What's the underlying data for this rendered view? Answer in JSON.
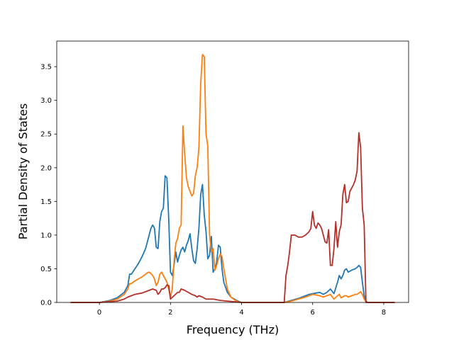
{
  "chart_data": {
    "type": "line",
    "title": "",
    "xlabel": "Frequency (THz)",
    "ylabel": "Partial Density of States",
    "xlim": [
      -1.2,
      8.7
    ],
    "ylim": [
      0,
      3.88
    ],
    "xticks": [
      0,
      2,
      4,
      6,
      8
    ],
    "yticks": [
      0.0,
      0.5,
      1.0,
      1.5,
      2.0,
      2.5,
      3.0,
      3.5
    ],
    "xtick_labels": [
      "0",
      "2",
      "4",
      "6",
      "8"
    ],
    "ytick_labels": [
      "0.0",
      "0.5",
      "1.0",
      "1.5",
      "2.0",
      "2.5",
      "3.0",
      "3.5"
    ],
    "grid": false,
    "legend": "none",
    "series": [
      {
        "color": "#1f77b4",
        "x": [
          -0.8,
          0.0,
          0.3,
          0.5,
          0.7,
          0.8,
          0.85,
          0.9,
          1.0,
          1.1,
          1.2,
          1.3,
          1.35,
          1.4,
          1.45,
          1.5,
          1.55,
          1.6,
          1.65,
          1.7,
          1.75,
          1.8,
          1.85,
          1.9,
          1.95,
          2.0,
          2.05,
          2.1,
          2.15,
          2.2,
          2.25,
          2.3,
          2.35,
          2.4,
          2.45,
          2.5,
          2.55,
          2.6,
          2.65,
          2.7,
          2.75,
          2.8,
          2.85,
          2.9,
          2.95,
          3.0,
          3.05,
          3.1,
          3.15,
          3.2,
          3.25,
          3.3,
          3.35,
          3.4,
          3.45,
          3.5,
          3.6,
          3.7,
          3.8,
          3.9,
          4.0,
          5.2,
          5.4,
          5.6,
          5.8,
          5.9,
          6.0,
          6.1,
          6.2,
          6.3,
          6.4,
          6.5,
          6.6,
          6.7,
          6.75,
          6.8,
          6.85,
          6.9,
          6.95,
          7.0,
          7.1,
          7.2,
          7.25,
          7.3,
          7.35,
          7.4,
          7.45,
          7.5,
          7.55,
          8.3
        ],
        "y": [
          0.0,
          0.0,
          0.03,
          0.07,
          0.15,
          0.25,
          0.42,
          0.42,
          0.5,
          0.58,
          0.68,
          0.8,
          0.9,
          1.0,
          1.1,
          1.15,
          1.1,
          0.82,
          0.8,
          1.2,
          1.35,
          1.4,
          1.88,
          1.85,
          1.25,
          0.45,
          0.4,
          0.55,
          0.75,
          0.6,
          0.7,
          0.78,
          0.82,
          0.75,
          0.85,
          0.92,
          1.02,
          0.8,
          0.62,
          0.58,
          0.8,
          1.1,
          1.6,
          1.75,
          1.3,
          1.05,
          0.65,
          0.7,
          0.98,
          0.45,
          0.5,
          0.6,
          0.85,
          0.82,
          0.5,
          0.3,
          0.15,
          0.08,
          0.05,
          0.02,
          0.0,
          0.0,
          0.03,
          0.06,
          0.1,
          0.12,
          0.13,
          0.14,
          0.15,
          0.12,
          0.15,
          0.2,
          0.13,
          0.3,
          0.4,
          0.35,
          0.4,
          0.48,
          0.5,
          0.45,
          0.48,
          0.5,
          0.52,
          0.55,
          0.52,
          0.3,
          0.1,
          0.02,
          0.0,
          0.0
        ]
      },
      {
        "color": "#ff7f0e",
        "x": [
          -0.8,
          0.0,
          0.3,
          0.5,
          0.7,
          0.8,
          0.85,
          0.9,
          1.0,
          1.1,
          1.2,
          1.3,
          1.35,
          1.4,
          1.45,
          1.5,
          1.55,
          1.6,
          1.65,
          1.7,
          1.75,
          1.8,
          1.85,
          1.9,
          1.95,
          2.0,
          2.05,
          2.1,
          2.15,
          2.2,
          2.25,
          2.3,
          2.35,
          2.4,
          2.45,
          2.5,
          2.55,
          2.6,
          2.65,
          2.7,
          2.75,
          2.8,
          2.85,
          2.9,
          2.95,
          3.0,
          3.05,
          3.1,
          3.15,
          3.2,
          3.25,
          3.3,
          3.35,
          3.4,
          3.45,
          3.5,
          3.6,
          3.7,
          3.8,
          3.9,
          4.0,
          5.2,
          5.4,
          5.6,
          5.8,
          5.9,
          6.0,
          6.1,
          6.2,
          6.3,
          6.4,
          6.5,
          6.6,
          6.7,
          6.75,
          6.8,
          6.85,
          6.9,
          6.95,
          7.0,
          7.1,
          7.2,
          7.25,
          7.3,
          7.35,
          7.4,
          7.45,
          7.5,
          7.55,
          8.3
        ],
        "y": [
          0.0,
          0.0,
          0.02,
          0.05,
          0.12,
          0.2,
          0.28,
          0.28,
          0.32,
          0.35,
          0.38,
          0.42,
          0.44,
          0.45,
          0.43,
          0.4,
          0.35,
          0.25,
          0.3,
          0.42,
          0.45,
          0.4,
          0.35,
          0.3,
          0.2,
          0.08,
          0.2,
          0.6,
          0.88,
          0.95,
          1.1,
          1.15,
          2.62,
          2.2,
          1.85,
          1.72,
          1.65,
          1.58,
          1.62,
          1.88,
          2.0,
          2.3,
          3.25,
          3.68,
          3.65,
          2.5,
          2.32,
          1.0,
          0.75,
          0.8,
          0.48,
          0.55,
          0.65,
          0.72,
          0.68,
          0.5,
          0.2,
          0.08,
          0.04,
          0.01,
          0.0,
          0.0,
          0.02,
          0.05,
          0.08,
          0.1,
          0.12,
          0.11,
          0.1,
          0.08,
          0.1,
          0.12,
          0.05,
          0.1,
          0.12,
          0.07,
          0.08,
          0.1,
          0.1,
          0.08,
          0.1,
          0.12,
          0.12,
          0.14,
          0.16,
          0.12,
          0.05,
          0.01,
          0.0,
          0.0
        ]
      },
      {
        "color": "#b62f27",
        "x": [
          -0.8,
          0.0,
          0.5,
          0.7,
          0.8,
          0.9,
          1.0,
          1.2,
          1.4,
          1.5,
          1.6,
          1.65,
          1.7,
          1.75,
          1.8,
          1.85,
          1.9,
          1.95,
          2.0,
          2.1,
          2.2,
          2.25,
          2.3,
          2.4,
          2.5,
          2.6,
          2.7,
          2.75,
          2.8,
          2.9,
          3.0,
          3.2,
          3.4,
          3.6,
          3.8,
          4.0,
          5.2,
          5.25,
          5.3,
          5.35,
          5.4,
          5.5,
          5.6,
          5.7,
          5.8,
          5.9,
          5.95,
          6.0,
          6.05,
          6.1,
          6.15,
          6.2,
          6.25,
          6.3,
          6.35,
          6.4,
          6.45,
          6.5,
          6.55,
          6.6,
          6.65,
          6.7,
          6.75,
          6.8,
          6.85,
          6.9,
          6.95,
          7.0,
          7.05,
          7.1,
          7.15,
          7.2,
          7.25,
          7.3,
          7.35,
          7.4,
          7.45,
          7.5,
          8.3
        ],
        "y": [
          0.0,
          0.0,
          0.02,
          0.05,
          0.08,
          0.1,
          0.12,
          0.14,
          0.18,
          0.2,
          0.18,
          0.12,
          0.15,
          0.2,
          0.2,
          0.22,
          0.26,
          0.25,
          0.05,
          0.1,
          0.15,
          0.15,
          0.2,
          0.18,
          0.15,
          0.12,
          0.1,
          0.08,
          0.1,
          0.08,
          0.05,
          0.05,
          0.03,
          0.02,
          0.01,
          0.0,
          0.0,
          0.4,
          0.55,
          0.75,
          1.0,
          1.0,
          0.97,
          0.97,
          1.0,
          1.05,
          1.1,
          1.35,
          1.15,
          1.1,
          1.18,
          1.15,
          1.1,
          1.0,
          0.9,
          0.88,
          1.08,
          0.55,
          0.55,
          0.8,
          1.2,
          0.82,
          1.05,
          1.15,
          1.6,
          1.75,
          1.48,
          1.5,
          1.65,
          1.7,
          1.75,
          1.82,
          1.95,
          2.52,
          2.3,
          1.4,
          1.15,
          0.0,
          0.0
        ]
      }
    ]
  }
}
